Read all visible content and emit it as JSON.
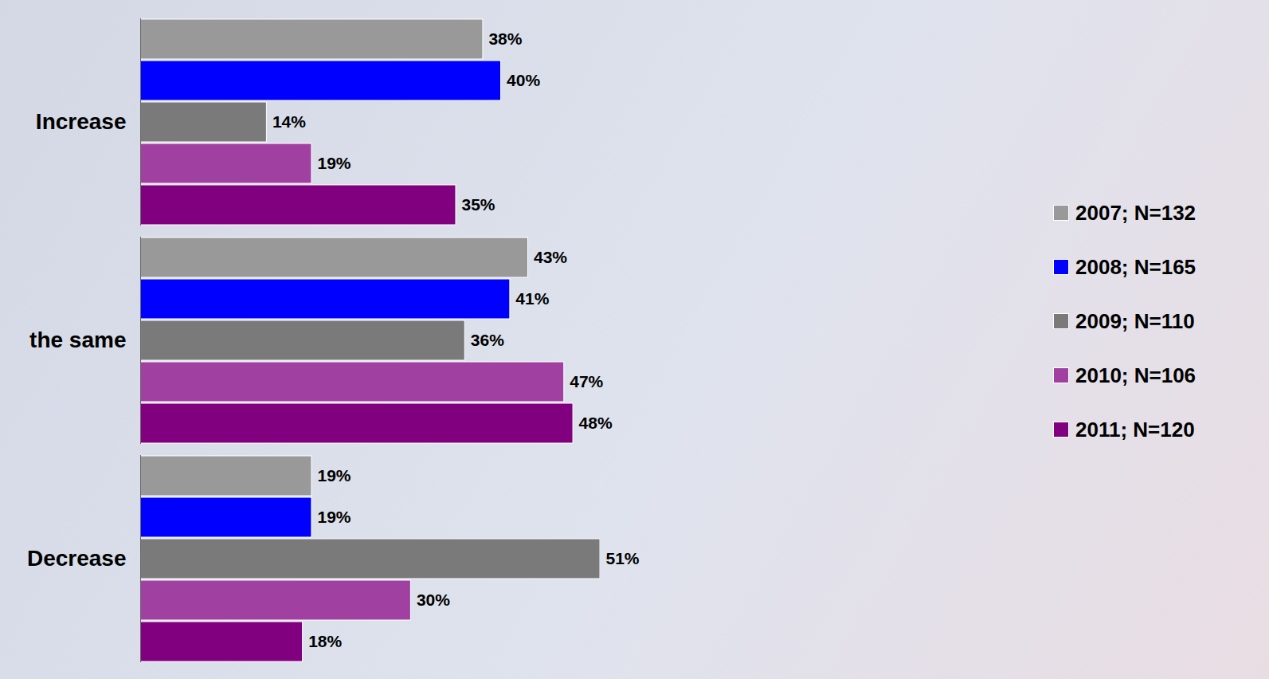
{
  "chart_data": {
    "type": "bar",
    "orientation": "horizontal",
    "categories": [
      "Increase",
      "the same",
      "Decrease"
    ],
    "series": [
      {
        "name": "2007; N=132",
        "color": "#999999",
        "values": [
          38,
          43,
          19
        ],
        "value_labels": [
          "38%",
          "43%",
          "19%"
        ]
      },
      {
        "name": "2008; N=165",
        "color": "#0000ff",
        "values": [
          40,
          41,
          19
        ],
        "value_labels": [
          "40%",
          "41%",
          "19%"
        ]
      },
      {
        "name": "2009; N=110",
        "color": "#7a7a7a",
        "values": [
          14,
          36,
          51
        ],
        "value_labels": [
          "14%",
          "36%",
          "51%"
        ]
      },
      {
        "name": "2010; N=106",
        "color": "#a040a0",
        "values": [
          19,
          47,
          30
        ],
        "value_labels": [
          "19%",
          "47%",
          "30%"
        ]
      },
      {
        "name": "2011; N=120",
        "color": "#800080",
        "values": [
          35,
          48,
          18
        ],
        "value_labels": [
          "35%",
          "48%",
          "18%"
        ]
      }
    ],
    "data_labels": true,
    "tick_labels": "y",
    "legend": "right",
    "grid": false
  }
}
